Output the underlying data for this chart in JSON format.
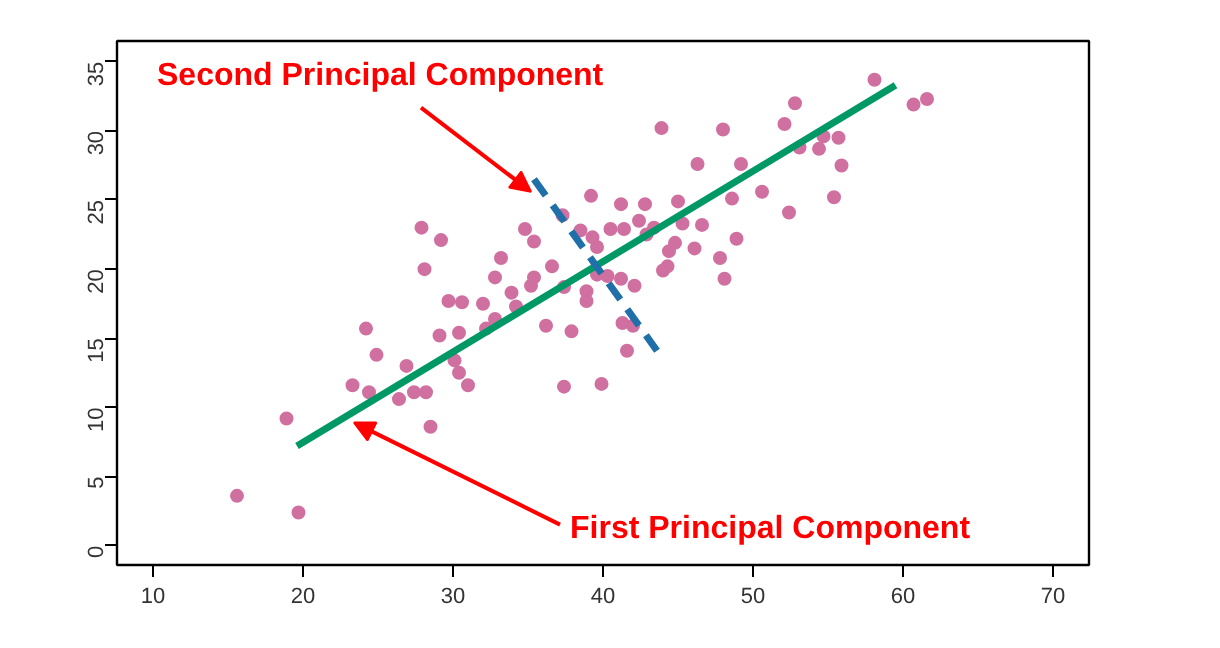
{
  "chart_data": {
    "type": "scatter",
    "xlim": [
      7.6,
      72.4
    ],
    "ylim": [
      -1.4,
      36.5
    ],
    "xticks": [
      10,
      20,
      30,
      40,
      50,
      60,
      70
    ],
    "yticks": [
      0,
      5,
      10,
      15,
      20,
      25,
      30,
      35
    ],
    "grid": false,
    "series": [
      {
        "marker": "circle",
        "color": "#d070a0",
        "x": [
          15.6,
          19.7,
          18.9,
          23.3,
          24.2,
          24.9,
          24.4,
          26.4,
          26.9,
          27.4,
          28.2,
          28.5,
          29.1,
          30.1,
          30.4,
          30.4,
          31.0,
          29.7,
          30.6,
          32.0,
          32.8,
          32.2,
          34.2,
          36.2,
          37.4,
          37.9,
          38.9,
          39.9,
          27.9,
          29.2,
          28.1,
          33.2,
          32.8,
          33.9,
          35.4,
          35.2,
          36.6,
          34.8,
          35.4,
          37.3,
          39.2,
          38.5,
          39.3,
          39.6,
          40.5,
          39.6,
          38.9,
          37.4,
          41.2,
          58.1,
          60.7,
          61.6,
          52.8,
          52.1,
          43.9,
          48.0,
          54.7,
          55.7,
          53.1,
          54.4,
          46.3,
          49.2,
          55.9,
          50.6,
          48.6,
          55.4,
          45.0,
          42.8,
          52.4,
          42.4,
          45.3,
          46.6,
          43.4,
          41.4,
          42.9,
          48.9,
          44.8,
          44.4,
          46.1,
          47.8,
          44.3,
          44.0,
          48.1,
          40.3,
          41.2,
          42.1,
          41.3,
          42.0,
          41.6
        ],
        "values": [
          3.6,
          2.4,
          9.2,
          11.6,
          15.7,
          13.8,
          11.1,
          10.6,
          13.0,
          11.1,
          11.1,
          8.6,
          15.2,
          13.4,
          12.5,
          15.4,
          11.6,
          17.7,
          17.6,
          17.5,
          16.4,
          15.7,
          17.3,
          15.9,
          11.5,
          15.5,
          17.7,
          11.7,
          23.0,
          22.1,
          20.0,
          20.8,
          19.4,
          18.3,
          19.4,
          18.8,
          20.2,
          22.9,
          22.0,
          23.9,
          25.3,
          22.8,
          22.3,
          21.6,
          22.9,
          19.6,
          18.4,
          18.7,
          24.7,
          33.7,
          31.9,
          32.3,
          32.0,
          30.5,
          30.2,
          30.1,
          29.6,
          29.5,
          28.8,
          28.7,
          27.6,
          27.6,
          27.5,
          25.6,
          25.1,
          25.2,
          24.9,
          24.7,
          24.1,
          23.5,
          23.3,
          23.2,
          23.0,
          22.9,
          22.5,
          22.2,
          21.9,
          21.3,
          21.5,
          20.8,
          20.2,
          19.9,
          19.3,
          19.5,
          19.3,
          18.8,
          16.1,
          15.9,
          14.1
        ]
      },
      {
        "type": "line",
        "color": "#009966",
        "line_style": "solid",
        "x": [
          19.6,
          59.5
        ],
        "values": [
          7.2,
          33.3
        ]
      },
      {
        "type": "line",
        "color": "#1f6fa8",
        "line_style": "dashed",
        "x": [
          35.4,
          43.6
        ],
        "values": [
          26.5,
          14.1
        ]
      }
    ],
    "annotations": [
      {
        "text": "Second Principal Component",
        "x": 35.2,
        "y": 25.6
      },
      {
        "text": "First Principal Component",
        "x": 23.4,
        "y": 8.9
      }
    ]
  }
}
